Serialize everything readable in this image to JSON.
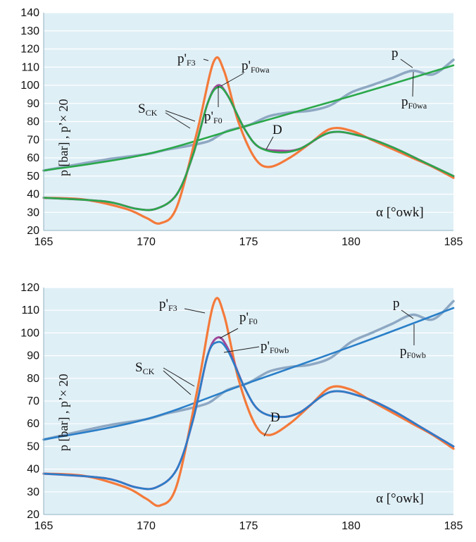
{
  "colors": {
    "background": "#dfeff6",
    "gridline": "#ffffff",
    "p_F3": "#f47a3a",
    "p_measured": "#8ea8c3",
    "p_F0": "#a0479a",
    "p_F0wa": "#2aa84a",
    "p_F0wb": "#2a7fc8"
  },
  "chart_data": [
    {
      "type": "line",
      "ylabel_main": "p [bar] , p’× 20",
      "xlabel": "α [°owk]",
      "xlim": [
        165,
        185
      ],
      "ylim": [
        20,
        140
      ],
      "x_ticks": [
        "165",
        "170",
        "175",
        "180",
        "185"
      ],
      "y_ticks": [
        "20",
        "30",
        "40",
        "50",
        "60",
        "70",
        "80",
        "90",
        "100",
        "110",
        "120",
        "130",
        "140"
      ],
      "grid": "horizontal",
      "annotations": {
        "pF3": {
          "main": "p'",
          "sub": "F3"
        },
        "pF0wa": {
          "main": "p'",
          "sub": "F0wa"
        },
        "pF0": {
          "main": "p'",
          "sub": "F0"
        },
        "SCK": {
          "main": "S",
          "sub": "CK"
        },
        "D": {
          "main": "D",
          "sub": ""
        },
        "p": {
          "main": "p",
          "sub": ""
        },
        "pF0wa_raw": {
          "main": "p",
          "sub": "F0wa"
        }
      },
      "series": [
        {
          "key": "p_measured",
          "x": [
            165,
            168,
            170,
            171,
            172,
            173,
            173.5,
            174,
            175,
            176,
            177,
            178,
            179,
            180,
            181,
            182,
            183,
            184,
            185
          ],
          "y": [
            53,
            59,
            62,
            64.5,
            66.5,
            69,
            72,
            75,
            78,
            83,
            85,
            86,
            89,
            96,
            100,
            104,
            108,
            106,
            114
          ]
        },
        {
          "key": "p_F0wa",
          "x": [
            165,
            170,
            175,
            180,
            185
          ],
          "y": [
            53,
            62,
            78,
            94,
            111
          ]
        },
        {
          "key": "p_F3",
          "x": [
            165,
            167,
            169,
            170,
            170.7,
            171.5,
            172.5,
            173.3,
            173.8,
            174.5,
            175.3,
            176,
            177,
            178,
            179,
            180,
            181,
            182,
            183,
            184,
            185
          ],
          "y": [
            38,
            37,
            32,
            27,
            24,
            33,
            75,
            113,
            108,
            80,
            60,
            55,
            60,
            68,
            76,
            75,
            70,
            65,
            60,
            55,
            49
          ]
        },
        {
          "key": "p_F0",
          "x": [
            165,
            168,
            169.5,
            170.5,
            171.5,
            172.3,
            173,
            173.5,
            174,
            174.8,
            175.5,
            176.5,
            177.5,
            179,
            180.5,
            182,
            183.5,
            185
          ],
          "y": [
            38,
            36,
            32,
            32,
            40,
            62,
            90,
            100,
            94,
            76,
            66,
            64,
            65,
            74,
            72,
            66,
            58,
            50
          ]
        },
        {
          "key": "p_F0wa",
          "x": [
            165,
            168,
            169.5,
            170.5,
            171.5,
            172.3,
            173,
            173.5,
            174,
            174.8,
            175.5,
            176.5,
            177.5,
            179,
            180.5,
            182,
            183.5,
            185
          ],
          "y": [
            38,
            36,
            32,
            32,
            40,
            62,
            90,
            99,
            94,
            76,
            66,
            63,
            65,
            74,
            72,
            66,
            58,
            50
          ]
        }
      ]
    },
    {
      "type": "line",
      "ylabel_main": "p [bar] , p’× 20",
      "xlabel": "α [°owk]",
      "xlim": [
        165,
        185
      ],
      "ylim": [
        20,
        120
      ],
      "x_ticks": [
        "165",
        "170",
        "175",
        "180",
        "185"
      ],
      "y_ticks": [
        "20",
        "30",
        "40",
        "50",
        "60",
        "70",
        "80",
        "90",
        "100",
        "110",
        "120"
      ],
      "grid": "horizontal",
      "annotations": {
        "pF3": {
          "main": "p'",
          "sub": "F3"
        },
        "pF0": {
          "main": "p'",
          "sub": "F0"
        },
        "pF0wb": {
          "main": "p'",
          "sub": "F0wb"
        },
        "SCK": {
          "main": "S",
          "sub": "CK"
        },
        "D": {
          "main": "D",
          "sub": ""
        },
        "p": {
          "main": "p",
          "sub": ""
        },
        "pF0wb_raw": {
          "main": "p",
          "sub": "F0wb"
        }
      },
      "series": [
        {
          "key": "p_measured",
          "x": [
            165,
            168,
            170,
            171,
            172,
            173,
            173.5,
            174,
            175,
            176,
            177,
            178,
            179,
            180,
            181,
            182,
            183,
            184,
            185
          ],
          "y": [
            53,
            59,
            62,
            64.5,
            66.5,
            69,
            72,
            75,
            78,
            83,
            85,
            86,
            89,
            96,
            100,
            104,
            108,
            106,
            114
          ]
        },
        {
          "key": "p_F0wb",
          "x": [
            165,
            170,
            175,
            180,
            185
          ],
          "y": [
            53,
            62,
            78,
            94,
            111
          ]
        },
        {
          "key": "p_F3",
          "x": [
            165,
            167,
            169,
            170,
            170.7,
            171.5,
            172.5,
            173.3,
            173.8,
            174.5,
            175.3,
            176,
            177,
            178,
            179,
            180,
            181,
            182,
            183,
            184,
            185
          ],
          "y": [
            38,
            37,
            32,
            27,
            24,
            33,
            75,
            113,
            108,
            80,
            60,
            55,
            60,
            68,
            76,
            75,
            70,
            65,
            60,
            55,
            49
          ]
        },
        {
          "key": "p_F0",
          "x": [
            165,
            168,
            169.5,
            170.5,
            171.5,
            172.3,
            173,
            173.5,
            174,
            174.8,
            175.5,
            176.5,
            177.5,
            179,
            180.5,
            182,
            183.5,
            185
          ],
          "y": [
            38,
            36,
            32,
            32,
            40,
            62,
            90,
            98,
            93,
            76,
            66,
            63,
            65,
            74,
            72,
            66,
            58,
            50
          ]
        },
        {
          "key": "p_F0wb",
          "x": [
            165,
            168,
            169.5,
            170.5,
            171.5,
            172.3,
            173,
            173.5,
            174,
            174.8,
            175.5,
            176.5,
            177.5,
            179,
            180.5,
            182,
            183.5,
            185
          ],
          "y": [
            38,
            36,
            32,
            32,
            40,
            62,
            90,
            96,
            92,
            76,
            66,
            63,
            65,
            74,
            72,
            66,
            58,
            50
          ]
        }
      ]
    }
  ]
}
